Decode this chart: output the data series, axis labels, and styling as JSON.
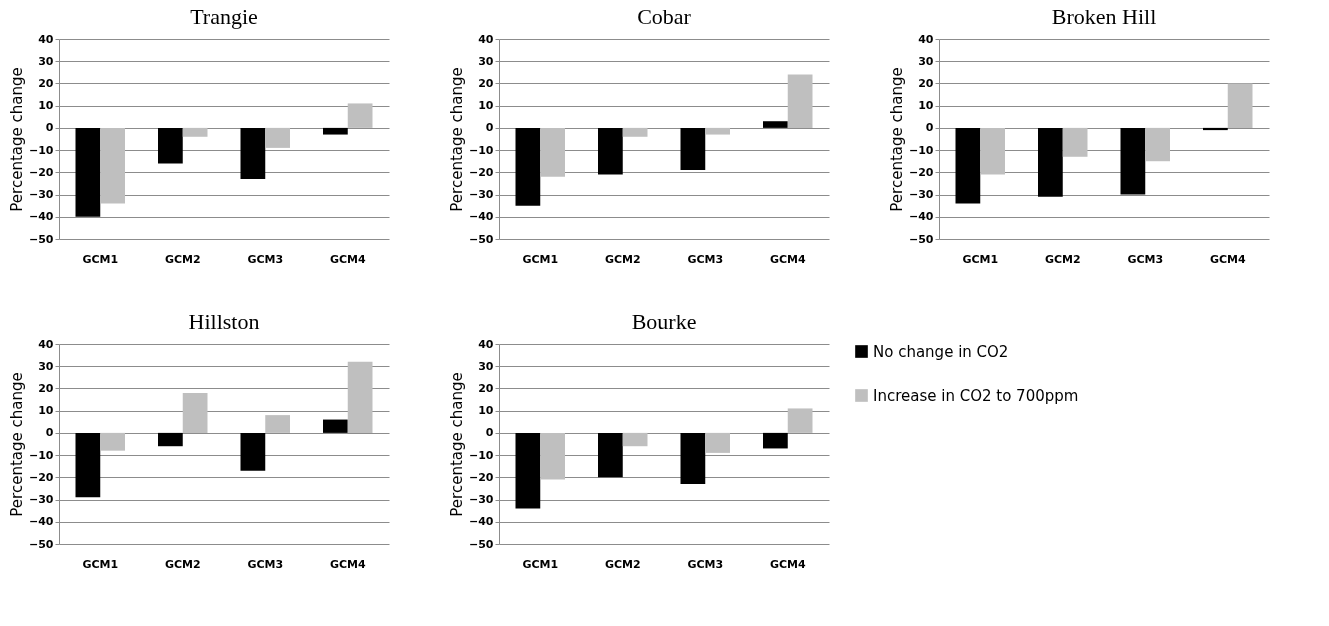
{
  "chart_data": [
    {
      "type": "bar",
      "title": "Trangie",
      "ylabel": "Percentage change",
      "categories": [
        "GCM1",
        "GCM2",
        "GCM3",
        "GCM4"
      ],
      "ylim": [
        -50,
        40
      ],
      "yticks": [
        -50,
        -40,
        -30,
        -20,
        -10,
        0,
        10,
        20,
        30,
        40
      ],
      "grid": "y",
      "legend": false,
      "series": [
        {
          "color": "#000000",
          "values": [
            -40,
            -16,
            -23,
            -3
          ]
        },
        {
          "color": "#bfbfbf",
          "values": [
            -34,
            -4,
            -9,
            11
          ]
        }
      ]
    },
    {
      "type": "bar",
      "title": "Cobar",
      "ylabel": "Percentage change",
      "categories": [
        "GCM1",
        "GCM2",
        "GCM3",
        "GCM4"
      ],
      "ylim": [
        -50,
        40
      ],
      "yticks": [
        -50,
        -40,
        -30,
        -20,
        -10,
        0,
        10,
        20,
        30,
        40
      ],
      "grid": "y",
      "legend": false,
      "series": [
        {
          "color": "#000000",
          "values": [
            -35,
            -21,
            -19,
            3
          ]
        },
        {
          "color": "#bfbfbf",
          "values": [
            -22,
            -4,
            -3,
            24
          ]
        }
      ]
    },
    {
      "type": "bar",
      "title": "Broken Hill",
      "ylabel": "Percentage change",
      "categories": [
        "GCM1",
        "GCM2",
        "GCM3",
        "GCM4"
      ],
      "ylim": [
        -50,
        40
      ],
      "yticks": [
        -50,
        -40,
        -30,
        -20,
        -10,
        0,
        10,
        20,
        30,
        40
      ],
      "grid": "y",
      "legend": false,
      "series": [
        {
          "color": "#000000",
          "values": [
            -34,
            -31,
            -30,
            -1
          ]
        },
        {
          "color": "#bfbfbf",
          "values": [
            -21,
            -13,
            -15,
            20
          ]
        }
      ]
    },
    {
      "type": "bar",
      "title": "Hillston",
      "ylabel": "Percentage change",
      "categories": [
        "GCM1",
        "GCM2",
        "GCM3",
        "GCM4"
      ],
      "ylim": [
        -50,
        40
      ],
      "yticks": [
        -50,
        -40,
        -30,
        -20,
        -10,
        0,
        10,
        20,
        30,
        40
      ],
      "grid": "y",
      "legend": false,
      "series": [
        {
          "color": "#000000",
          "values": [
            -29,
            -6,
            -17,
            6
          ]
        },
        {
          "color": "#bfbfbf",
          "values": [
            -8,
            18,
            8,
            32
          ]
        }
      ]
    },
    {
      "type": "bar",
      "title": "Bourke",
      "ylabel": "Percentage change",
      "categories": [
        "GCM1",
        "GCM2",
        "GCM3",
        "GCM4"
      ],
      "ylim": [
        -50,
        40
      ],
      "yticks": [
        -50,
        -40,
        -30,
        -20,
        -10,
        0,
        10,
        20,
        30,
        40
      ],
      "grid": "y",
      "legend": "right",
      "series": [
        {
          "name": "No change in CO2",
          "color": "#000000",
          "values": [
            -34,
            -20,
            -23,
            -7
          ]
        },
        {
          "name": "Increase in CO2 to 700ppm",
          "color": "#bfbfbf",
          "values": [
            -21,
            -6,
            -9,
            11
          ]
        }
      ]
    }
  ]
}
